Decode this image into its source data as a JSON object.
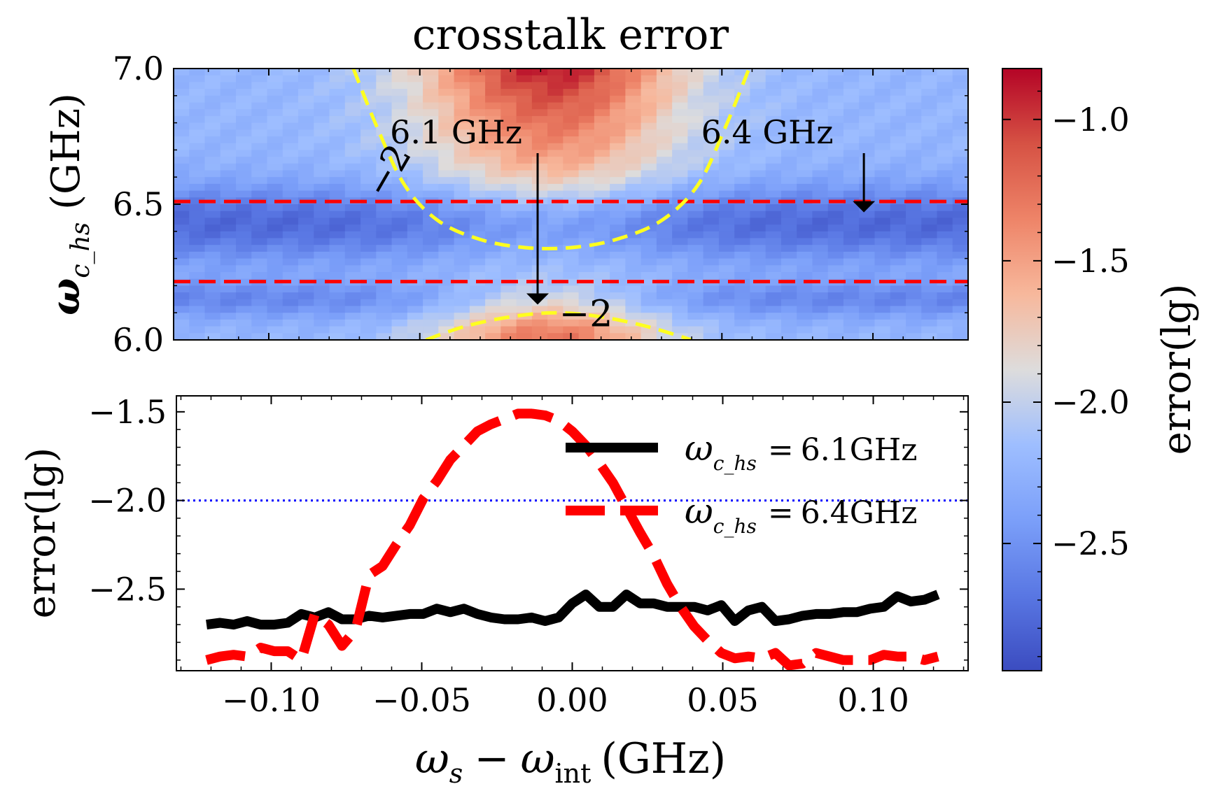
{
  "chart_data": [
    {
      "type": "heatmap",
      "title": "crosstalk error",
      "ylabel_sym": "ω",
      "ylabel_sub": "c_hs",
      "ylabel_unit": "(GHz)",
      "xlim": [
        -0.1315,
        0.1315
      ],
      "ylim": [
        6.0,
        7.0
      ],
      "yticks": [
        "6.0",
        "6.5",
        "7.0"
      ],
      "grid": false,
      "colormap": "coolwarm",
      "value_range": [
        -2.95,
        -0.82
      ],
      "colorbar_label": "error(lg)",
      "colorbar_ticks": [
        "−1.0",
        "−1.5",
        "−2.0",
        "−2.5"
      ],
      "colorbar_tick_values": [
        -1.0,
        -1.5,
        -2.0,
        -2.5
      ],
      "dashed_lines_y": [
        6.51,
        6.215
      ],
      "contour_level_label": "−2",
      "contours": [
        {
          "x": [
            -0.072,
            -0.064,
            -0.055,
            -0.044,
            -0.03,
            -0.015,
            0.0,
            0.015,
            0.03,
            0.042,
            0.051,
            0.059
          ],
          "y": [
            7.0,
            6.78,
            6.57,
            6.44,
            6.37,
            6.34,
            6.34,
            6.37,
            6.44,
            6.57,
            6.78,
            7.0
          ]
        },
        {
          "x": [
            -0.048,
            -0.035,
            -0.02,
            -0.005,
            0.01,
            0.025,
            0.04
          ],
          "y": [
            6.0,
            6.05,
            6.085,
            6.1,
            6.085,
            6.05,
            6.0
          ]
        }
      ],
      "annotations": [
        {
          "text": "6.1 GHz",
          "x": -0.038,
          "y": 6.75,
          "arrow_to": [
            -0.011,
            6.13
          ]
        },
        {
          "text": "6.4 GHz",
          "x": 0.065,
          "y": 6.75,
          "arrow_to": [
            0.097,
            6.47
          ]
        }
      ]
    },
    {
      "type": "line",
      "xlabel_sym1": "ω",
      "xlabel_sub1": "s",
      "xlabel_minus": "−",
      "xlabel_sym2": "ω",
      "xlabel_sub2": "int",
      "xlabel_unit": "(GHz)",
      "ylabel": "error(lg)",
      "xlim": [
        -0.1315,
        0.1315
      ],
      "ylim": [
        -2.96,
        -1.41
      ],
      "xticks": [
        "−0.10",
        "−0.05",
        "0.00",
        "0.05",
        "0.10"
      ],
      "xtick_values": [
        -0.1,
        -0.05,
        0.0,
        0.05,
        0.1
      ],
      "yticks": [
        "−1.5",
        "−2.0",
        "−2.5"
      ],
      "ytick_values": [
        -1.5,
        -2.0,
        -2.5
      ],
      "reference_line_y": -2.0,
      "legend_position": "upper-right",
      "series": [
        {
          "name": "6.1GHz",
          "legend_prefix_sym": "ω",
          "legend_prefix_sub": "c_hs",
          "legend_eq": "=",
          "color": "#000000",
          "style": "solid",
          "x": [
            -0.1215,
            -0.117,
            -0.1125,
            -0.108,
            -0.1035,
            -0.099,
            -0.0945,
            -0.09,
            -0.0855,
            -0.081,
            -0.0765,
            -0.072,
            -0.0675,
            -0.063,
            -0.0585,
            -0.054,
            -0.0495,
            -0.045,
            -0.0405,
            -0.036,
            -0.0315,
            -0.027,
            -0.0225,
            -0.018,
            -0.0135,
            -0.009,
            -0.0045,
            0.0,
            0.0045,
            0.009,
            0.0135,
            0.018,
            0.0225,
            0.027,
            0.0315,
            0.036,
            0.0405,
            0.045,
            0.0495,
            0.054,
            0.0585,
            0.063,
            0.0675,
            0.072,
            0.0765,
            0.081,
            0.0855,
            0.09,
            0.0945,
            0.099,
            0.1035,
            0.108,
            0.1125,
            0.117,
            0.1215
          ],
          "values": [
            -2.7,
            -2.69,
            -2.7,
            -2.68,
            -2.7,
            -2.7,
            -2.69,
            -2.64,
            -2.66,
            -2.63,
            -2.67,
            -2.67,
            -2.65,
            -2.66,
            -2.65,
            -2.64,
            -2.64,
            -2.61,
            -2.63,
            -2.61,
            -2.64,
            -2.66,
            -2.67,
            -2.67,
            -2.66,
            -2.68,
            -2.66,
            -2.58,
            -2.53,
            -2.6,
            -2.6,
            -2.53,
            -2.58,
            -2.58,
            -2.6,
            -2.6,
            -2.6,
            -2.62,
            -2.59,
            -2.68,
            -2.62,
            -2.6,
            -2.68,
            -2.67,
            -2.65,
            -2.64,
            -2.64,
            -2.63,
            -2.63,
            -2.61,
            -2.6,
            -2.54,
            -2.57,
            -2.56,
            -2.53
          ]
        },
        {
          "name": "6.4GHz",
          "legend_prefix_sym": "ω",
          "legend_prefix_sub": "c_hs",
          "legend_eq": "=",
          "color": "#ff0000",
          "style": "dashed",
          "x": [
            -0.1215,
            -0.117,
            -0.1125,
            -0.108,
            -0.1035,
            -0.099,
            -0.0945,
            -0.09,
            -0.0855,
            -0.081,
            -0.0765,
            -0.072,
            -0.0675,
            -0.063,
            -0.0585,
            -0.054,
            -0.0495,
            -0.045,
            -0.0405,
            -0.036,
            -0.0315,
            -0.027,
            -0.0225,
            -0.018,
            -0.0135,
            -0.009,
            -0.0045,
            0.0,
            0.0045,
            0.009,
            0.0135,
            0.018,
            0.0225,
            0.027,
            0.0315,
            0.036,
            0.0405,
            0.045,
            0.0495,
            0.054,
            0.0585,
            0.063,
            0.0675,
            0.072,
            0.0765,
            0.081,
            0.0855,
            0.09,
            0.0945,
            0.099,
            0.1035,
            0.108,
            0.1125,
            0.117,
            0.1215
          ],
          "values": [
            -2.9,
            -2.88,
            -2.87,
            -2.88,
            -2.83,
            -2.85,
            -2.85,
            -2.9,
            -2.64,
            -2.7,
            -2.82,
            -2.73,
            -2.42,
            -2.37,
            -2.25,
            -2.14,
            -1.99,
            -1.89,
            -1.77,
            -1.69,
            -1.61,
            -1.57,
            -1.54,
            -1.51,
            -1.51,
            -1.52,
            -1.55,
            -1.61,
            -1.69,
            -1.79,
            -1.9,
            -2.04,
            -2.18,
            -2.31,
            -2.47,
            -2.6,
            -2.71,
            -2.79,
            -2.86,
            -2.89,
            -2.88,
            -2.89,
            -2.86,
            -2.93,
            -2.92,
            -2.86,
            -2.88,
            -2.9,
            -2.9,
            -2.9,
            -2.87,
            -2.88,
            -2.88,
            -2.9,
            -2.88
          ]
        }
      ]
    }
  ]
}
